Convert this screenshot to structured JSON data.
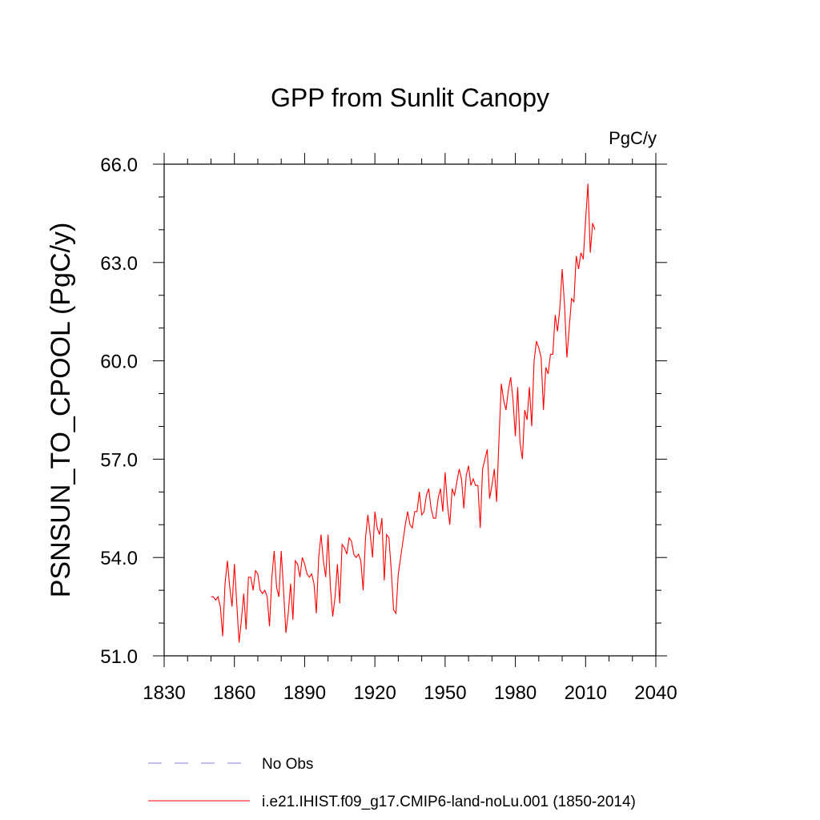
{
  "chart_data": {
    "type": "line",
    "title": "GPP from Sunlit Canopy",
    "units": "PgC/y",
    "ylabel": "PSNSUN_TO_CPOOL  (PgC/y)",
    "xlabel": "",
    "xlim": [
      1830,
      2040
    ],
    "ylim": [
      51.0,
      66.0
    ],
    "xticks": [
      "1830",
      "1860",
      "1890",
      "1920",
      "1950",
      "1980",
      "2010",
      "2040"
    ],
    "xtick_values": [
      1830,
      1860,
      1890,
      1920,
      1950,
      1980,
      2010,
      2040
    ],
    "yticks": [
      "51.0",
      "54.0",
      "57.0",
      "60.0",
      "63.0",
      "66.0"
    ],
    "ytick_values": [
      51.0,
      54.0,
      57.0,
      60.0,
      63.0,
      66.0
    ],
    "grid": false,
    "legend_placement": "bottom-left",
    "series": [
      {
        "name": "No Obs",
        "color": "#9999dd",
        "style": "dashed",
        "x": [],
        "y": []
      },
      {
        "name": "i.e21.IHIST.f09_g17.CMIP6-land-noLu.001 (1850-2014)",
        "color": "#ff0000",
        "style": "solid",
        "x": [
          1850,
          1851,
          1852,
          1853,
          1854,
          1855,
          1856,
          1857,
          1858,
          1859,
          1860,
          1861,
          1862,
          1863,
          1864,
          1865,
          1866,
          1867,
          1868,
          1869,
          1870,
          1871,
          1872,
          1873,
          1874,
          1875,
          1876,
          1877,
          1878,
          1879,
          1880,
          1881,
          1882,
          1883,
          1884,
          1885,
          1886,
          1887,
          1888,
          1889,
          1890,
          1891,
          1892,
          1893,
          1894,
          1895,
          1896,
          1897,
          1898,
          1899,
          1900,
          1901,
          1902,
          1903,
          1904,
          1905,
          1906,
          1907,
          1908,
          1909,
          1910,
          1911,
          1912,
          1913,
          1914,
          1915,
          1916,
          1917,
          1918,
          1919,
          1920,
          1921,
          1922,
          1923,
          1924,
          1925,
          1926,
          1927,
          1928,
          1929,
          1930,
          1931,
          1932,
          1933,
          1934,
          1935,
          1936,
          1937,
          1938,
          1939,
          1940,
          1941,
          1942,
          1943,
          1944,
          1945,
          1946,
          1947,
          1948,
          1949,
          1950,
          1951,
          1952,
          1953,
          1954,
          1955,
          1956,
          1957,
          1958,
          1959,
          1960,
          1961,
          1962,
          1963,
          1964,
          1965,
          1966,
          1967,
          1968,
          1969,
          1970,
          1971,
          1972,
          1973,
          1974,
          1975,
          1976,
          1977,
          1978,
          1979,
          1980,
          1981,
          1982,
          1983,
          1984,
          1985,
          1986,
          1987,
          1988,
          1989,
          1990,
          1991,
          1992,
          1993,
          1994,
          1995,
          1996,
          1997,
          1998,
          1999,
          2000,
          2001,
          2002,
          2003,
          2004,
          2005,
          2006,
          2007,
          2008,
          2009,
          2010,
          2011,
          2012,
          2013,
          2014
        ],
        "y": [
          52.8,
          52.8,
          52.7,
          52.8,
          52.5,
          51.6,
          53.2,
          53.9,
          53.1,
          52.5,
          53.8,
          52.6,
          51.4,
          52.1,
          52.9,
          51.8,
          53.4,
          53.4,
          53.0,
          53.6,
          53.5,
          53.0,
          52.9,
          53.0,
          52.8,
          51.9,
          53.4,
          54.2,
          53.1,
          52.8,
          54.2,
          53.0,
          51.7,
          52.3,
          53.2,
          52.1,
          53.9,
          53.8,
          53.4,
          54.0,
          53.8,
          53.5,
          53.4,
          53.5,
          53.2,
          52.3,
          54.0,
          54.7,
          53.9,
          53.4,
          54.7,
          53.1,
          52.2,
          52.8,
          53.8,
          52.6,
          54.4,
          54.3,
          54.1,
          54.6,
          54.5,
          54.1,
          54.0,
          54.1,
          53.9,
          53.0,
          54.6,
          55.3,
          54.7,
          54.0,
          55.4,
          54.9,
          54.7,
          55.2,
          53.3,
          54.7,
          54.6,
          53.6,
          52.4,
          52.3,
          53.5,
          54.0,
          54.5,
          55.0,
          55.4,
          55.0,
          54.9,
          55.4,
          55.4,
          56.0,
          55.3,
          55.4,
          55.9,
          56.1,
          55.5,
          55.2,
          55.2,
          55.8,
          56.1,
          55.4,
          56.6,
          55.6,
          55.0,
          56.1,
          55.9,
          56.3,
          56.7,
          56.4,
          55.5,
          56.5,
          56.8,
          56.2,
          56.4,
          56.2,
          56.2,
          54.9,
          56.7,
          57.0,
          57.3,
          55.8,
          56.2,
          56.7,
          55.7,
          57.6,
          59.3,
          58.8,
          58.5,
          59.1,
          59.5,
          58.8,
          57.7,
          59.2,
          57.5,
          57.0,
          58.5,
          58.2,
          59.2,
          58.0,
          60.0,
          60.6,
          60.4,
          60.1,
          58.5,
          59.8,
          59.6,
          60.2,
          60.2,
          61.4,
          60.9,
          61.6,
          62.8,
          61.7,
          60.1,
          61.0,
          61.9,
          61.8,
          63.2,
          62.8,
          63.3,
          63.1,
          64.3,
          65.4,
          63.3,
          64.2,
          64.0
        ]
      }
    ]
  }
}
